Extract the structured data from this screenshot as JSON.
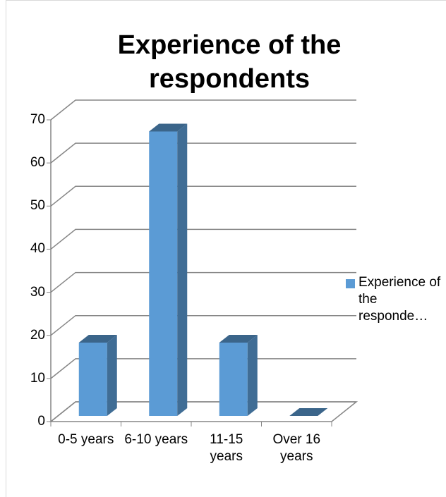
{
  "chart_data": {
    "type": "bar3d",
    "title": "Experience of the respondents",
    "categories": [
      "0-5 years",
      "6-10 years",
      "11-15 years",
      "Over 16 years"
    ],
    "series": [
      {
        "name": "Experience of the responde…",
        "color": "#5b9bd5",
        "values": [
          17,
          66,
          17,
          0
        ]
      }
    ],
    "ylim": [
      0,
      70
    ],
    "yticks": [
      0,
      10,
      20,
      30,
      40,
      50,
      60,
      70
    ],
    "grid": true,
    "legend": "right"
  }
}
